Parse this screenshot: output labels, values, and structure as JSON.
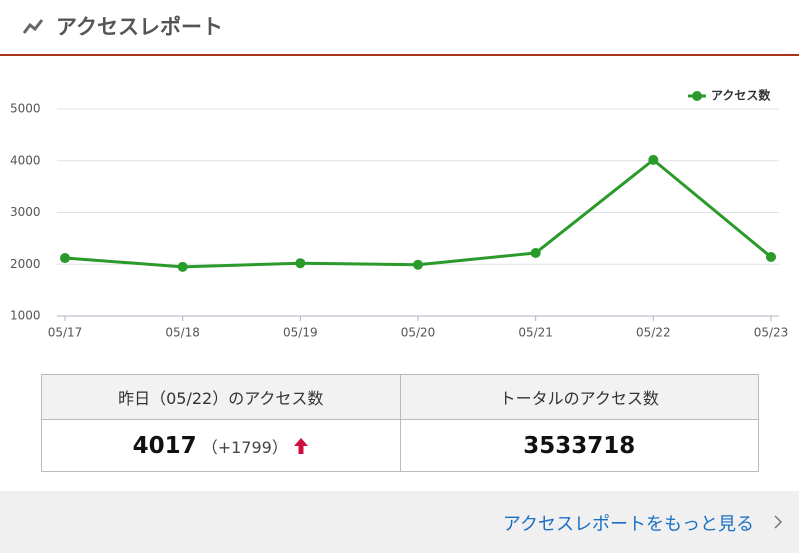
{
  "header": {
    "title": "アクセスレポート"
  },
  "chart_data": {
    "type": "line",
    "categories": [
      "05/17",
      "05/18",
      "05/19",
      "05/20",
      "05/21",
      "05/22",
      "05/23"
    ],
    "series": [
      {
        "name": "アクセス数",
        "color": "#2a9a2a",
        "values": [
          2120,
          1950,
          2020,
          1990,
          2218,
          4017,
          2140
        ]
      }
    ],
    "ylim": [
      1000,
      5000
    ],
    "yticks": [
      1000,
      2000,
      3000,
      4000,
      5000
    ],
    "grid": true,
    "legend": "top-right"
  },
  "table": {
    "headers": [
      "昨日（05/22）のアクセス数",
      "トータルのアクセス数"
    ],
    "rows": [
      [
        4017,
        "（+1799）",
        3533718
      ]
    ]
  },
  "footer": {
    "link": "アクセスレポートをもっと見る"
  }
}
